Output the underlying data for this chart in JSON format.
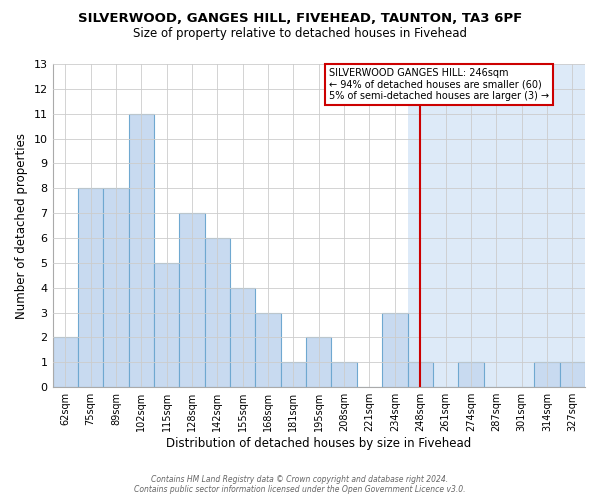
{
  "title": "SILVERWOOD, GANGES HILL, FIVEHEAD, TAUNTON, TA3 6PF",
  "subtitle": "Size of property relative to detached houses in Fivehead",
  "xlabel": "Distribution of detached houses by size in Fivehead",
  "ylabel": "Number of detached properties",
  "bar_labels": [
    "62sqm",
    "75sqm",
    "89sqm",
    "102sqm",
    "115sqm",
    "128sqm",
    "142sqm",
    "155sqm",
    "168sqm",
    "181sqm",
    "195sqm",
    "208sqm",
    "221sqm",
    "234sqm",
    "248sqm",
    "261sqm",
    "274sqm",
    "287sqm",
    "301sqm",
    "314sqm",
    "327sqm"
  ],
  "bar_values": [
    2,
    8,
    8,
    11,
    5,
    7,
    6,
    4,
    3,
    1,
    2,
    1,
    0,
    3,
    1,
    0,
    1,
    0,
    0,
    1,
    1
  ],
  "bar_color": "#c8daf0",
  "bar_edgecolor": "#6fa8d0",
  "highlight_color": "#d8e8f8",
  "vline_index": 14,
  "vline_color": "#cc0000",
  "ylim": [
    0,
    13
  ],
  "yticks": [
    0,
    1,
    2,
    3,
    4,
    5,
    6,
    7,
    8,
    9,
    10,
    11,
    12,
    13
  ],
  "annotation_title": "SILVERWOOD GANGES HILL: 246sqm",
  "annotation_line1": "← 94% of detached houses are smaller (60)",
  "annotation_line2": "5% of semi-detached houses are larger (3) →",
  "annotation_box_color": "#ffffff",
  "annotation_box_edgecolor": "#cc0000",
  "footer_line1": "Contains HM Land Registry data © Crown copyright and database right 2024.",
  "footer_line2": "Contains public sector information licensed under the Open Government Licence v3.0.",
  "bg_color": "#ffffff",
  "plot_bg_color": "#ffffff",
  "highlight_bg_color": "#ddeaf8",
  "grid_color": "#cccccc",
  "title_fontsize": 9.5,
  "subtitle_fontsize": 8.5
}
